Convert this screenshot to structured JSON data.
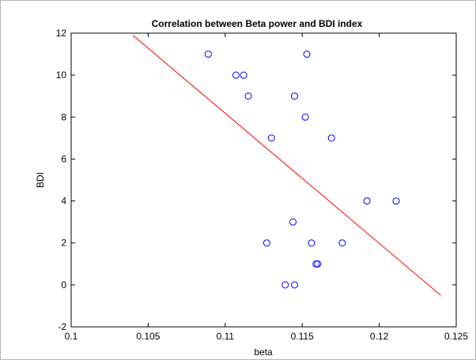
{
  "chart_data": {
    "type": "scatter",
    "title": "Correlation between Beta power and BDI index",
    "xlabel": "beta",
    "ylabel": "BDI",
    "xlim": [
      0.1,
      0.125
    ],
    "ylim": [
      -2,
      12
    ],
    "xticks": [
      0.1,
      0.105,
      0.11,
      0.115,
      0.12,
      0.125
    ],
    "xtick_labels": [
      "0.1",
      "0.105",
      "0.11",
      "0.115",
      "0.12",
      "0.125"
    ],
    "yticks": [
      -2,
      0,
      2,
      4,
      6,
      8,
      10,
      12
    ],
    "ytick_labels": [
      "-2",
      "0",
      "2",
      "4",
      "6",
      "8",
      "10",
      "12"
    ],
    "grid": false,
    "series": [
      {
        "marker": "circle-open",
        "color": "#0000ff",
        "points": [
          {
            "x": 0.1089,
            "y": 11
          },
          {
            "x": 0.1107,
            "y": 10
          },
          {
            "x": 0.1112,
            "y": 10
          },
          {
            "x": 0.1115,
            "y": 9
          },
          {
            "x": 0.1145,
            "y": 9
          },
          {
            "x": 0.1153,
            "y": 11
          },
          {
            "x": 0.1152,
            "y": 8
          },
          {
            "x": 0.113,
            "y": 7
          },
          {
            "x": 0.1169,
            "y": 7
          },
          {
            "x": 0.1192,
            "y": 4
          },
          {
            "x": 0.1211,
            "y": 4
          },
          {
            "x": 0.1144,
            "y": 3
          },
          {
            "x": 0.1127,
            "y": 2
          },
          {
            "x": 0.1156,
            "y": 2
          },
          {
            "x": 0.1176,
            "y": 2
          },
          {
            "x": 0.1159,
            "y": 1
          },
          {
            "x": 0.116,
            "y": 1
          },
          {
            "x": 0.1139,
            "y": 0
          },
          {
            "x": 0.1145,
            "y": 0
          }
        ]
      },
      {
        "type": "line",
        "color": "#ff0000",
        "x": [
          0.104,
          0.124
        ],
        "y": [
          11.9,
          -0.5
        ]
      }
    ]
  }
}
